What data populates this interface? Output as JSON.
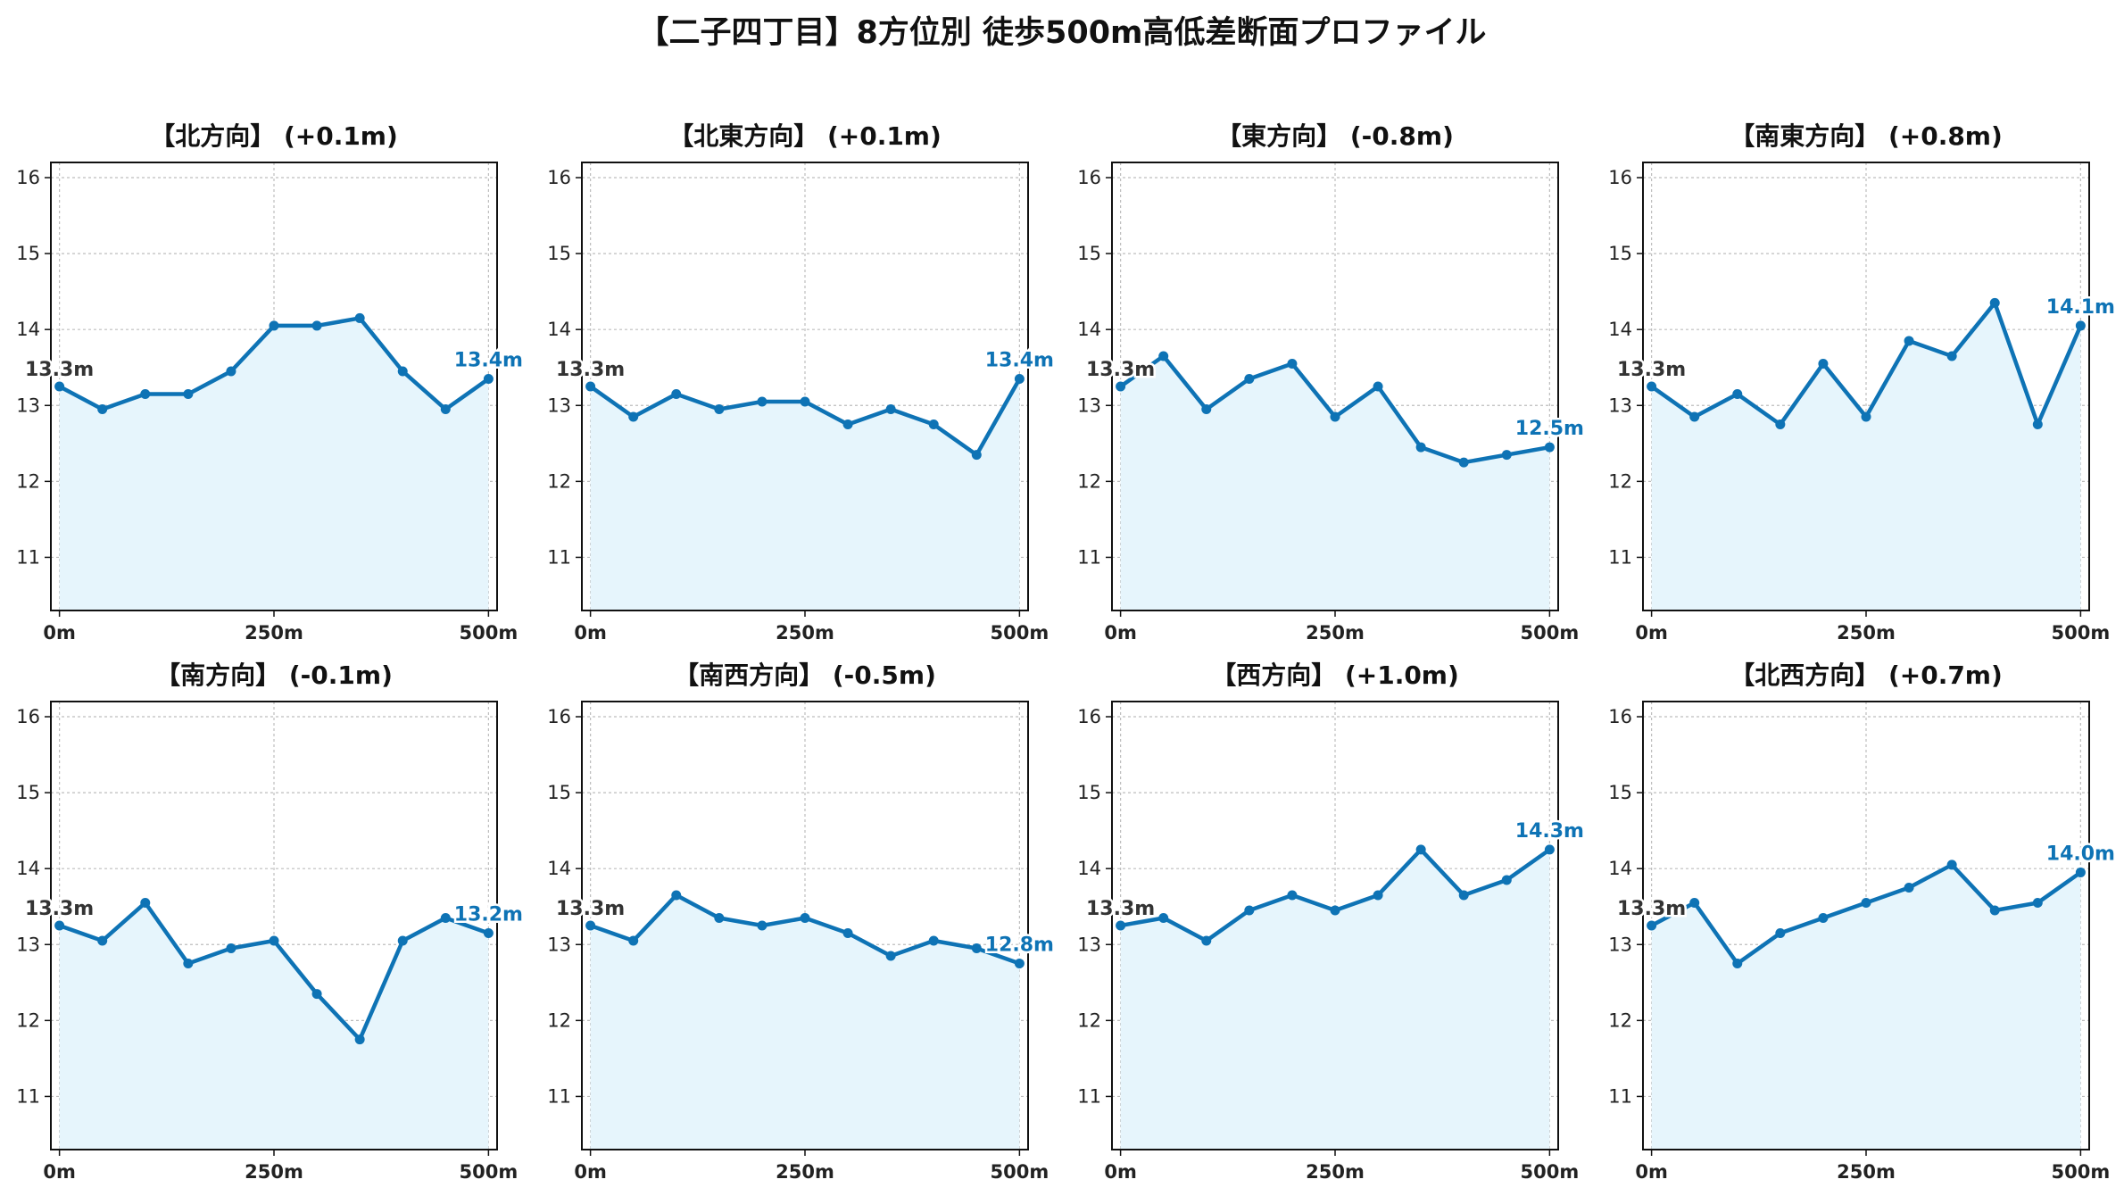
{
  "title": "【二子四丁目】8方位別 徒歩500m高低差断面プロファイル",
  "colors": {
    "line": "#0e73b5",
    "fill": "#e6f5fc",
    "grid": "#bdbdbd",
    "start_label": "#333333"
  },
  "chart_data": [
    {
      "type": "line",
      "title": "【北方向】 (+0.1m)",
      "x": [
        0,
        50,
        100,
        150,
        200,
        250,
        300,
        350,
        400,
        450,
        500
      ],
      "values": [
        13.25,
        12.95,
        13.15,
        13.15,
        13.45,
        14.05,
        14.05,
        14.15,
        13.45,
        12.95,
        13.35
      ],
      "start_label": "13.3m",
      "end_label": "13.4m",
      "xlim": [
        -10,
        510
      ],
      "ylim": [
        10.3,
        16.2
      ],
      "xticks": [
        0,
        250,
        500
      ],
      "xtick_labels": [
        "0m",
        "250m",
        "500m"
      ],
      "yticks": [
        11,
        12,
        13,
        14,
        15,
        16
      ],
      "ytick_labels": [
        "11",
        "12",
        "13",
        "14",
        "15",
        "16"
      ],
      "grid": true
    },
    {
      "type": "line",
      "title": "【北東方向】 (+0.1m)",
      "x": [
        0,
        50,
        100,
        150,
        200,
        250,
        300,
        350,
        400,
        450,
        500
      ],
      "values": [
        13.25,
        12.85,
        13.15,
        12.95,
        13.05,
        13.05,
        12.75,
        12.95,
        12.75,
        12.35,
        13.35
      ],
      "start_label": "13.3m",
      "end_label": "13.4m",
      "xlim": [
        -10,
        510
      ],
      "ylim": [
        10.3,
        16.2
      ],
      "xticks": [
        0,
        250,
        500
      ],
      "xtick_labels": [
        "0m",
        "250m",
        "500m"
      ],
      "yticks": [
        11,
        12,
        13,
        14,
        15,
        16
      ],
      "ytick_labels": [
        "11",
        "12",
        "13",
        "14",
        "15",
        "16"
      ],
      "grid": true
    },
    {
      "type": "line",
      "title": "【東方向】 (-0.8m)",
      "x": [
        0,
        50,
        100,
        150,
        200,
        250,
        300,
        350,
        400,
        450,
        500
      ],
      "values": [
        13.25,
        13.65,
        12.95,
        13.35,
        13.55,
        12.85,
        13.25,
        12.45,
        12.25,
        12.35,
        12.45
      ],
      "start_label": "13.3m",
      "end_label": "12.5m",
      "xlim": [
        -10,
        510
      ],
      "ylim": [
        10.3,
        16.2
      ],
      "xticks": [
        0,
        250,
        500
      ],
      "xtick_labels": [
        "0m",
        "250m",
        "500m"
      ],
      "yticks": [
        11,
        12,
        13,
        14,
        15,
        16
      ],
      "ytick_labels": [
        "11",
        "12",
        "13",
        "14",
        "15",
        "16"
      ],
      "grid": true
    },
    {
      "type": "line",
      "title": "【南東方向】 (+0.8m)",
      "x": [
        0,
        50,
        100,
        150,
        200,
        250,
        300,
        350,
        400,
        450,
        500
      ],
      "values": [
        13.25,
        12.85,
        13.15,
        12.75,
        13.55,
        12.85,
        13.85,
        13.65,
        14.35,
        12.75,
        14.05
      ],
      "start_label": "13.3m",
      "end_label": "14.1m",
      "xlim": [
        -10,
        510
      ],
      "ylim": [
        10.3,
        16.2
      ],
      "xticks": [
        0,
        250,
        500
      ],
      "xtick_labels": [
        "0m",
        "250m",
        "500m"
      ],
      "yticks": [
        11,
        12,
        13,
        14,
        15,
        16
      ],
      "ytick_labels": [
        "11",
        "12",
        "13",
        "14",
        "15",
        "16"
      ],
      "grid": true
    },
    {
      "type": "line",
      "title": "【南方向】 (-0.1m)",
      "x": [
        0,
        50,
        100,
        150,
        200,
        250,
        300,
        350,
        400,
        450,
        500
      ],
      "values": [
        13.25,
        13.05,
        13.55,
        12.75,
        12.95,
        13.05,
        12.35,
        11.75,
        13.05,
        13.35,
        13.15
      ],
      "start_label": "13.3m",
      "end_label": "13.2m",
      "xlim": [
        -10,
        510
      ],
      "ylim": [
        10.3,
        16.2
      ],
      "xticks": [
        0,
        250,
        500
      ],
      "xtick_labels": [
        "0m",
        "250m",
        "500m"
      ],
      "yticks": [
        11,
        12,
        13,
        14,
        15,
        16
      ],
      "ytick_labels": [
        "11",
        "12",
        "13",
        "14",
        "15",
        "16"
      ],
      "grid": true
    },
    {
      "type": "line",
      "title": "【南西方向】 (-0.5m)",
      "x": [
        0,
        50,
        100,
        150,
        200,
        250,
        300,
        350,
        400,
        450,
        500
      ],
      "values": [
        13.25,
        13.05,
        13.65,
        13.35,
        13.25,
        13.35,
        13.15,
        12.85,
        13.05,
        12.95,
        12.75
      ],
      "start_label": "13.3m",
      "end_label": "12.8m",
      "xlim": [
        -10,
        510
      ],
      "ylim": [
        10.3,
        16.2
      ],
      "xticks": [
        0,
        250,
        500
      ],
      "xtick_labels": [
        "0m",
        "250m",
        "500m"
      ],
      "yticks": [
        11,
        12,
        13,
        14,
        15,
        16
      ],
      "ytick_labels": [
        "11",
        "12",
        "13",
        "14",
        "15",
        "16"
      ],
      "grid": true
    },
    {
      "type": "line",
      "title": "【西方向】 (+1.0m)",
      "x": [
        0,
        50,
        100,
        150,
        200,
        250,
        300,
        350,
        400,
        450,
        500
      ],
      "values": [
        13.25,
        13.35,
        13.05,
        13.45,
        13.65,
        13.45,
        13.65,
        14.25,
        13.65,
        13.85,
        14.25
      ],
      "start_label": "13.3m",
      "end_label": "14.3m",
      "xlim": [
        -10,
        510
      ],
      "ylim": [
        10.3,
        16.2
      ],
      "xticks": [
        0,
        250,
        500
      ],
      "xtick_labels": [
        "0m",
        "250m",
        "500m"
      ],
      "yticks": [
        11,
        12,
        13,
        14,
        15,
        16
      ],
      "ytick_labels": [
        "11",
        "12",
        "13",
        "14",
        "15",
        "16"
      ],
      "grid": true
    },
    {
      "type": "line",
      "title": "【北西方向】 (+0.7m)",
      "x": [
        0,
        50,
        100,
        150,
        200,
        250,
        300,
        350,
        400,
        450,
        500
      ],
      "values": [
        13.25,
        13.55,
        12.75,
        13.15,
        13.35,
        13.55,
        13.75,
        14.05,
        13.45,
        13.55,
        13.95
      ],
      "start_label": "13.3m",
      "end_label": "14.0m",
      "xlim": [
        -10,
        510
      ],
      "ylim": [
        10.3,
        16.2
      ],
      "xticks": [
        0,
        250,
        500
      ],
      "xtick_labels": [
        "0m",
        "250m",
        "500m"
      ],
      "yticks": [
        11,
        12,
        13,
        14,
        15,
        16
      ],
      "ytick_labels": [
        "11",
        "12",
        "13",
        "14",
        "15",
        "16"
      ],
      "grid": true
    }
  ]
}
